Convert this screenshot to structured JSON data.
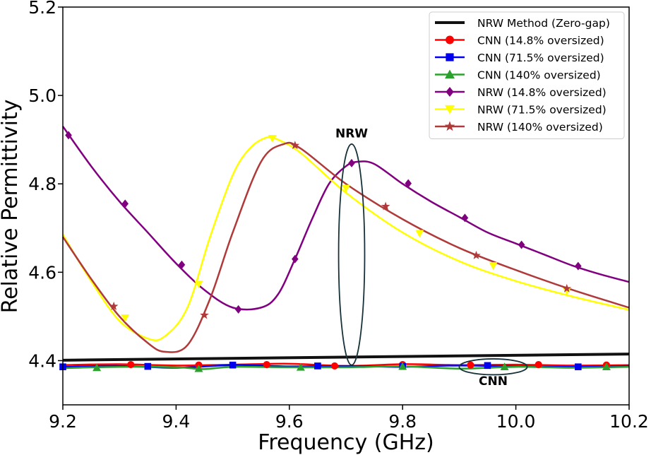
{
  "chart_data": {
    "type": "line",
    "title": "",
    "xlabel": "Frequency (GHz)",
    "ylabel": "Relative Permittivity",
    "xlim": [
      9.2,
      10.2
    ],
    "ylim": [
      4.3,
      5.2
    ],
    "xticks": [
      "9.2",
      "9.4",
      "9.6",
      "9.8",
      "10.0",
      "10.2"
    ],
    "yticks": [
      "4.4",
      "4.6",
      "4.8",
      "5.0",
      "5.2"
    ],
    "legend_position": "top-right",
    "series": [
      {
        "name": "NRW Method (Zero-gap)",
        "color": "#111111",
        "marker": "none",
        "width": 4,
        "x": [
          9.2,
          10.2
        ],
        "y": [
          4.401,
          4.415
        ],
        "markers": []
      },
      {
        "name": "CNN (14.8% oversized)",
        "color": "#ff0000",
        "marker": "circle",
        "width": 2.5,
        "x": [
          9.2,
          9.3,
          9.4,
          9.5,
          9.6,
          9.7,
          9.8,
          9.9,
          10.0,
          10.1,
          10.2
        ],
        "y": [
          4.39,
          4.392,
          4.389,
          4.391,
          4.393,
          4.388,
          4.392,
          4.39,
          4.391,
          4.389,
          4.39
        ],
        "markers": [
          [
            9.32,
            4.391
          ],
          [
            9.44,
            4.39
          ],
          [
            9.56,
            4.391
          ],
          [
            9.68,
            4.388
          ],
          [
            9.8,
            4.391
          ],
          [
            9.92,
            4.39
          ],
          [
            10.04,
            4.391
          ],
          [
            10.16,
            4.39
          ]
        ]
      },
      {
        "name": "CNN (71.5% oversized)",
        "color": "#0000ee",
        "marker": "square",
        "width": 2.5,
        "x": [
          9.2,
          9.3,
          9.4,
          9.5,
          9.6,
          9.7,
          9.8,
          9.9,
          10.0,
          10.1,
          10.2
        ],
        "y": [
          4.386,
          4.388,
          4.384,
          4.39,
          4.387,
          4.388,
          4.386,
          4.389,
          4.387,
          4.386,
          4.388
        ],
        "markers": [
          [
            9.2,
            4.386
          ],
          [
            9.35,
            4.387
          ],
          [
            9.5,
            4.39
          ],
          [
            9.65,
            4.388
          ],
          [
            9.8,
            4.387
          ],
          [
            9.95,
            4.389
          ],
          [
            10.11,
            4.386
          ]
        ]
      },
      {
        "name": "CNN (140% oversized)",
        "color": "#2ca02c",
        "marker": "triangle",
        "width": 2.5,
        "x": [
          9.2,
          9.3,
          9.4,
          9.45,
          9.5,
          9.6,
          9.7,
          9.8,
          9.9,
          10.0,
          10.1,
          10.2
        ],
        "y": [
          4.383,
          4.386,
          4.385,
          4.381,
          4.386,
          4.385,
          4.385,
          4.387,
          4.382,
          4.386,
          4.384,
          4.386
        ],
        "markers": [
          [
            9.26,
            4.384
          ],
          [
            9.44,
            4.382
          ],
          [
            9.62,
            4.385
          ],
          [
            9.8,
            4.387
          ],
          [
            9.98,
            4.386
          ],
          [
            10.16,
            4.386
          ]
        ]
      },
      {
        "name": "NRW (14.8% oversized)",
        "color": "#800080",
        "marker": "diamond",
        "width": 2.5,
        "x": [
          9.2,
          9.25,
          9.3,
          9.35,
          9.4,
          9.45,
          9.5,
          9.55,
          9.58,
          9.61,
          9.64,
          9.67,
          9.7,
          9.72,
          9.75,
          9.8,
          9.85,
          9.9,
          9.95,
          10.0,
          10.05,
          10.1,
          10.15,
          10.2
        ],
        "y": [
          4.93,
          4.84,
          4.76,
          4.69,
          4.62,
          4.56,
          4.52,
          4.52,
          4.55,
          4.63,
          4.72,
          4.8,
          4.84,
          4.85,
          4.845,
          4.8,
          4.76,
          4.725,
          4.69,
          4.665,
          4.64,
          4.615,
          4.595,
          4.578
        ],
        "markers": [
          [
            9.21,
            4.91
          ],
          [
            9.31,
            4.755
          ],
          [
            9.41,
            4.617
          ],
          [
            9.51,
            4.516
          ],
          [
            9.61,
            4.63
          ],
          [
            9.71,
            4.847
          ],
          [
            9.81,
            4.801
          ],
          [
            9.91,
            4.723
          ],
          [
            10.01,
            4.662
          ],
          [
            10.11,
            4.614
          ]
        ]
      },
      {
        "name": "NRW (71.5% oversized)",
        "color": "#ffff00",
        "marker": "triangle-down",
        "width": 2.5,
        "x": [
          9.2,
          9.25,
          9.3,
          9.35,
          9.38,
          9.42,
          9.46,
          9.5,
          9.53,
          9.56,
          9.58,
          9.62,
          9.7,
          9.8,
          9.9,
          10.0,
          10.1,
          10.2
        ],
        "y": [
          4.685,
          4.58,
          4.49,
          4.45,
          4.455,
          4.52,
          4.68,
          4.82,
          4.88,
          4.905,
          4.9,
          4.87,
          4.78,
          4.69,
          4.625,
          4.58,
          4.545,
          4.515
        ],
        "markers": [
          [
            9.31,
            4.497
          ],
          [
            9.44,
            4.573
          ],
          [
            9.57,
            4.903
          ],
          [
            9.7,
            4.79
          ],
          [
            9.83,
            4.688
          ],
          [
            9.96,
            4.615
          ],
          [
            10.09,
            4.558
          ]
        ]
      },
      {
        "name": "NRW (140% oversized)",
        "color": "#b03a3a",
        "marker": "star",
        "width": 2.5,
        "x": [
          9.2,
          9.25,
          9.3,
          9.35,
          9.38,
          9.42,
          9.46,
          9.5,
          9.55,
          9.59,
          9.62,
          9.7,
          9.8,
          9.9,
          10.0,
          10.1,
          10.2
        ],
        "y": [
          4.68,
          4.585,
          4.5,
          4.44,
          4.42,
          4.435,
          4.54,
          4.69,
          4.85,
          4.89,
          4.88,
          4.8,
          4.72,
          4.655,
          4.605,
          4.56,
          4.52
        ],
        "markers": [
          [
            9.29,
            4.523
          ],
          [
            9.45,
            4.503
          ],
          [
            9.61,
            4.887
          ],
          [
            9.77,
            4.749
          ],
          [
            9.93,
            4.638
          ],
          [
            10.09,
            4.563
          ]
        ]
      }
    ],
    "annotations": [
      {
        "label": "NRW",
        "cx": 9.71,
        "cy": 4.64,
        "rx": 0.023,
        "ry": 0.25,
        "text_x": 9.71,
        "text_y": 4.905
      },
      {
        "label": "CNN",
        "cx": 9.96,
        "cy": 4.386,
        "rx": 0.06,
        "ry": 0.018,
        "text_x": 9.96,
        "text_y": 4.345
      }
    ]
  }
}
